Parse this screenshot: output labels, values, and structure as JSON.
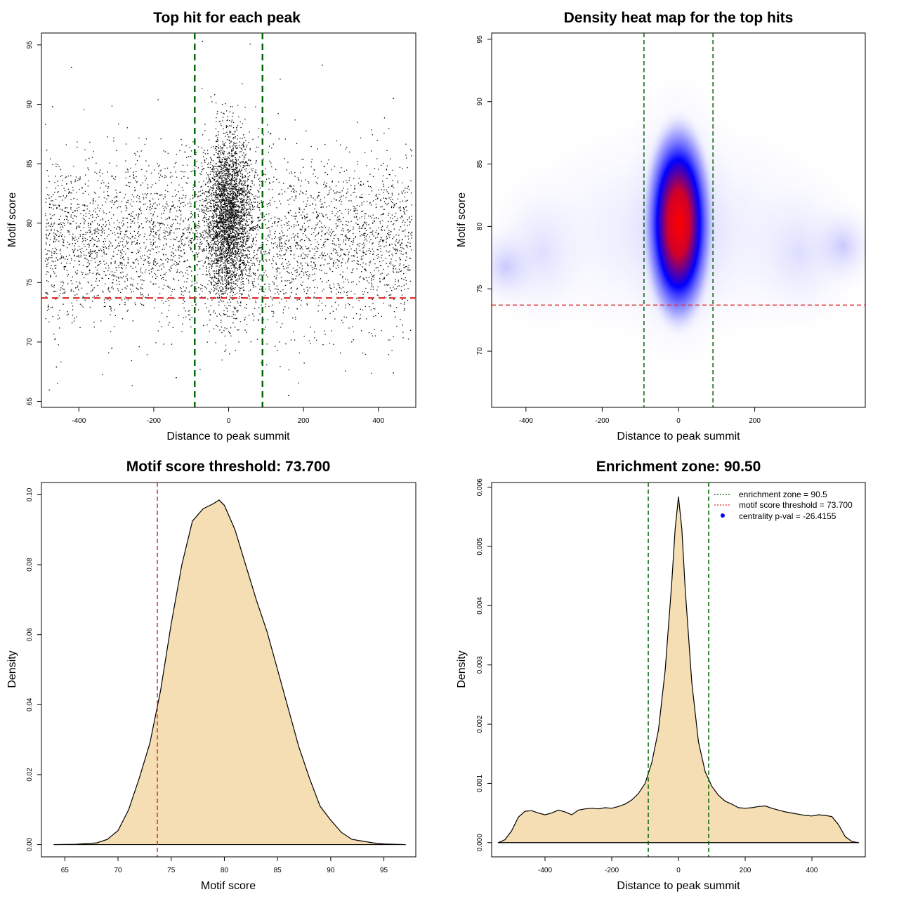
{
  "colors": {
    "threshold_line": "#dc2f2f",
    "enrichment_line": "#006400",
    "density_fill": "#f5deb3",
    "heat_low": "#ffffff",
    "heat_mid": "#0000ff",
    "heat_high": "#ff0000",
    "centrality_dot": "#0000ff"
  },
  "chart_data": [
    {
      "type": "scatter",
      "title": "Top hit for each peak",
      "xlabel": "Distance to peak summit",
      "ylabel": "Motif score",
      "xlim": [
        -500,
        500
      ],
      "ylim": [
        64.5,
        96
      ],
      "xticks": [
        -400,
        -200,
        0,
        200,
        400
      ],
      "yticks": [
        65,
        70,
        75,
        80,
        85,
        90,
        95
      ],
      "hlines": [
        73.7
      ],
      "vlines": [
        -90.5,
        90.5
      ],
      "background": {
        "x_range": [
          -490,
          490
        ],
        "y_mean": 78.5,
        "y_sd": 3.6,
        "center_mean": 80.5,
        "center_sd": 3.4,
        "center_x_sd": 30
      },
      "outliers": [
        {
          "x": -420,
          "y": 93.1
        },
        {
          "x": -470,
          "y": 89.8
        },
        {
          "x": -140,
          "y": 67
        },
        {
          "x": 160,
          "y": 65.5
        },
        {
          "x": 440,
          "y": 67.4
        },
        {
          "x": 250,
          "y": 93.3
        },
        {
          "x": -460,
          "y": 67.9
        },
        {
          "x": -70,
          "y": 95.3
        },
        {
          "x": 440,
          "y": 90.5
        },
        {
          "x": 90,
          "y": 69.8
        }
      ]
    },
    {
      "type": "heatmap",
      "title": "Density heat map for the top hits",
      "xlabel": "Distance to peak summit",
      "ylabel": "Motif score",
      "xlim": [
        -490,
        490
      ],
      "ylim": [
        65.5,
        95.5
      ],
      "xticks": [
        -400,
        -200,
        0,
        200
      ],
      "yticks": [
        70,
        75,
        80,
        85,
        90,
        95
      ],
      "hlines": [
        73.7
      ],
      "vlines": [
        -90.5,
        90.5
      ],
      "peak": {
        "x": 0,
        "y": 80.5
      }
    },
    {
      "type": "area",
      "title": "Motif score threshold: 73.700",
      "xlabel": "Motif score",
      "ylabel": "Density",
      "xlim": [
        62.8,
        98
      ],
      "ylim": [
        -0.0035,
        0.1035
      ],
      "xticks": [
        65,
        70,
        75,
        80,
        85,
        90,
        95
      ],
      "yticks": [
        0.0,
        0.02,
        0.04,
        0.06,
        0.08,
        0.1
      ],
      "ytick_labels": [
        "0.00",
        "0.02",
        "0.04",
        "0.06",
        "0.08",
        "0.10"
      ],
      "vlines": [
        73.7
      ],
      "x": [
        64,
        66,
        68,
        69,
        70,
        71,
        72,
        73,
        74,
        75,
        76,
        77,
        78,
        79,
        79.5,
        80,
        81,
        82,
        83,
        84,
        85,
        86,
        87,
        88,
        89,
        90,
        91,
        92,
        93,
        94,
        95,
        97
      ],
      "values": [
        0,
        0.0001,
        0.0005,
        0.0015,
        0.004,
        0.01,
        0.019,
        0.029,
        0.044,
        0.063,
        0.08,
        0.0925,
        0.096,
        0.0975,
        0.0985,
        0.097,
        0.09,
        0.08,
        0.07,
        0.061,
        0.05,
        0.039,
        0.028,
        0.019,
        0.011,
        0.007,
        0.0035,
        0.0015,
        0.001,
        0.0005,
        0.0002,
        0
      ]
    },
    {
      "type": "area",
      "title": "Enrichment zone: 90.50",
      "xlabel": "Distance to peak summit",
      "ylabel": "Density",
      "xlim": [
        -560,
        560
      ],
      "ylim": [
        -0.00024,
        0.00608
      ],
      "xticks": [
        -400,
        -200,
        0,
        200,
        400
      ],
      "yticks": [
        0.0,
        0.001,
        0.002,
        0.003,
        0.004,
        0.005,
        0.006
      ],
      "ytick_labels": [
        "0.000",
        "0.001",
        "0.002",
        "0.003",
        "0.004",
        "0.005",
        "0.006"
      ],
      "vlines": [
        -90.5,
        90.5
      ],
      "x": [
        -540,
        -520,
        -500,
        -480,
        -460,
        -440,
        -420,
        -400,
        -380,
        -360,
        -340,
        -320,
        -300,
        -280,
        -260,
        -240,
        -220,
        -200,
        -180,
        -160,
        -140,
        -120,
        -100,
        -80,
        -60,
        -40,
        -20,
        -10,
        0,
        10,
        20,
        40,
        60,
        80,
        100,
        120,
        140,
        160,
        180,
        200,
        220,
        240,
        260,
        280,
        300,
        320,
        340,
        360,
        380,
        400,
        420,
        440,
        460,
        480,
        500,
        520,
        540
      ],
      "values": [
        0,
        5e-05,
        0.0002,
        0.00043,
        0.00053,
        0.00054,
        0.0005,
        0.00047,
        0.0005,
        0.00055,
        0.00052,
        0.00047,
        0.00055,
        0.00057,
        0.00058,
        0.00057,
        0.00059,
        0.00058,
        0.00061,
        0.00065,
        0.00072,
        0.00083,
        0.001,
        0.00135,
        0.0019,
        0.0029,
        0.0044,
        0.0053,
        0.00584,
        0.0053,
        0.0043,
        0.0027,
        0.0017,
        0.0012,
        0.00095,
        0.0008,
        0.0007,
        0.00065,
        0.00059,
        0.00058,
        0.00059,
        0.00061,
        0.00062,
        0.00058,
        0.00055,
        0.00052,
        0.0005,
        0.00048,
        0.00046,
        0.00045,
        0.00047,
        0.00046,
        0.00044,
        0.0003,
        0.0001,
        2e-05,
        0
      ],
      "legend": [
        {
          "label": "enrichment zone = 90.5",
          "style": "line",
          "color": "#006400"
        },
        {
          "label": "motif score threshold = 73.700",
          "style": "line",
          "color": "#dc2f2f"
        },
        {
          "label": "centrality p-val = -26.4155",
          "style": "dot",
          "color": "#0000ff"
        }
      ],
      "legend_position": "top-right"
    }
  ]
}
